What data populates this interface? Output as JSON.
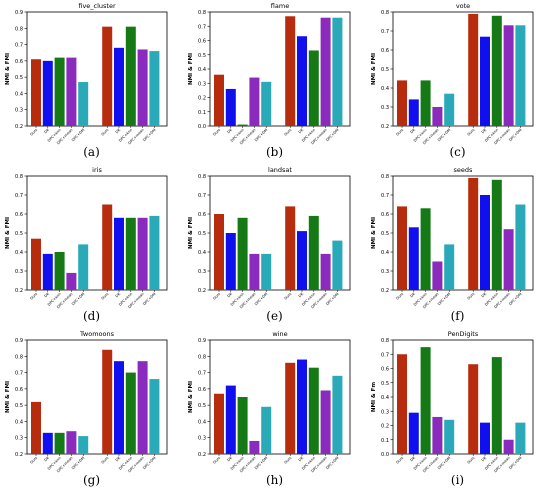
{
  "colors": [
    "#b82c0e",
    "#1010ee",
    "#157a15",
    "#8a2bbd",
    "#2aa9b8"
  ],
  "chart_data": [
    {
      "type": "bar",
      "title": "five_cluster",
      "ylabel": "NMI & FMI",
      "ylim": [
        0.2,
        0.9
      ],
      "yticks": [
        0.2,
        0.3,
        0.4,
        0.5,
        0.6,
        0.7,
        0.8,
        0.9
      ],
      "categories": [
        "Ours",
        "DK",
        "DPC+knn",
        "DPC+mean",
        "DPC+DM"
      ],
      "groups": [
        [
          0.61,
          0.6,
          0.62,
          0.62,
          0.47
        ],
        [
          0.81,
          0.68,
          0.81,
          0.67,
          0.66
        ]
      ],
      "caption": "(a)"
    },
    {
      "type": "bar",
      "title": "flame",
      "ylabel": "NMI & FMI",
      "ylim": [
        0.0,
        0.8
      ],
      "yticks": [
        0.0,
        0.1,
        0.2,
        0.3,
        0.4,
        0.5,
        0.6,
        0.7,
        0.8
      ],
      "categories": [
        "Ours",
        "DK",
        "DPC+knn",
        "DPC+mean",
        "DPC+DM"
      ],
      "groups": [
        [
          0.36,
          0.26,
          0.01,
          0.34,
          0.31
        ],
        [
          0.77,
          0.63,
          0.53,
          0.76,
          0.76
        ]
      ],
      "caption": "(b)"
    },
    {
      "type": "bar",
      "title": "vote",
      "ylabel": "NMI & FMI",
      "ylim": [
        0.2,
        0.8
      ],
      "yticks": [
        0.2,
        0.3,
        0.4,
        0.5,
        0.6,
        0.7,
        0.8
      ],
      "categories": [
        "Ours",
        "DK",
        "DPC+knn",
        "DPC+mean",
        "DPC+DM"
      ],
      "groups": [
        [
          0.44,
          0.34,
          0.44,
          0.3,
          0.37
        ],
        [
          0.79,
          0.67,
          0.78,
          0.73,
          0.73
        ]
      ],
      "caption": "(c)"
    },
    {
      "type": "bar",
      "title": "iris",
      "ylabel": "NMI & FMI",
      "ylim": [
        0.2,
        0.8
      ],
      "yticks": [
        0.2,
        0.3,
        0.4,
        0.5,
        0.6,
        0.7,
        0.8
      ],
      "categories": [
        "Ours",
        "DK",
        "DPC+knn",
        "DPC+mean",
        "DPC+DM"
      ],
      "groups": [
        [
          0.47,
          0.39,
          0.4,
          0.29,
          0.44
        ],
        [
          0.65,
          0.58,
          0.58,
          0.58,
          0.59
        ]
      ],
      "caption": "(d)"
    },
    {
      "type": "bar",
      "title": "landsat",
      "ylabel": "NMI & FMI",
      "ylim": [
        0.2,
        0.8
      ],
      "yticks": [
        0.2,
        0.3,
        0.4,
        0.5,
        0.6,
        0.7,
        0.8
      ],
      "categories": [
        "Ours",
        "DK",
        "DPC+knn",
        "DPC+mean",
        "DPC+DM"
      ],
      "groups": [
        [
          0.6,
          0.5,
          0.58,
          0.39,
          0.39
        ],
        [
          0.64,
          0.51,
          0.59,
          0.39,
          0.46
        ]
      ],
      "caption": "(e)"
    },
    {
      "type": "bar",
      "title": "seeds",
      "ylabel": "NMI & FMI",
      "ylim": [
        0.2,
        0.8
      ],
      "yticks": [
        0.2,
        0.3,
        0.4,
        0.5,
        0.6,
        0.7,
        0.8
      ],
      "categories": [
        "Ours",
        "DK",
        "DPC+knn",
        "DPC+mean",
        "DPC+DM"
      ],
      "groups": [
        [
          0.64,
          0.53,
          0.63,
          0.35,
          0.44
        ],
        [
          0.79,
          0.7,
          0.78,
          0.52,
          0.65
        ]
      ],
      "caption": "(f)"
    },
    {
      "type": "bar",
      "title": "Twomoons",
      "ylabel": "NMI & FMI",
      "ylim": [
        0.2,
        0.9
      ],
      "yticks": [
        0.2,
        0.3,
        0.4,
        0.5,
        0.6,
        0.7,
        0.8,
        0.9
      ],
      "categories": [
        "Ours",
        "DK",
        "DPC+knn",
        "DPC+mean",
        "DPC+DM"
      ],
      "groups": [
        [
          0.52,
          0.33,
          0.33,
          0.34,
          0.31
        ],
        [
          0.84,
          0.77,
          0.7,
          0.77,
          0.66
        ]
      ],
      "caption": "(g)"
    },
    {
      "type": "bar",
      "title": "wine",
      "ylabel": "NMI & FMI",
      "ylim": [
        0.2,
        0.9
      ],
      "yticks": [
        0.2,
        0.3,
        0.4,
        0.5,
        0.6,
        0.7,
        0.8,
        0.9
      ],
      "categories": [
        "Ours",
        "DK",
        "DPC+knn",
        "DPC+mean",
        "DPC+DM"
      ],
      "groups": [
        [
          0.57,
          0.62,
          0.55,
          0.28,
          0.49
        ],
        [
          0.76,
          0.78,
          0.73,
          0.59,
          0.68
        ]
      ],
      "caption": "(h)"
    },
    {
      "type": "bar",
      "title": "PenDigits",
      "ylabel": "NMI & Fm",
      "ylim": [
        0.0,
        0.8
      ],
      "yticks": [
        0.0,
        0.1,
        0.2,
        0.3,
        0.4,
        0.5,
        0.6,
        0.7,
        0.8
      ],
      "categories": [
        "Ours",
        "DK",
        "DPC+knn",
        "DPC+mean",
        "DPC+DM"
      ],
      "groups": [
        [
          0.7,
          0.29,
          0.75,
          0.26,
          0.24
        ],
        [
          0.63,
          0.22,
          0.68,
          0.1,
          0.22
        ]
      ],
      "caption": "(i)"
    }
  ]
}
